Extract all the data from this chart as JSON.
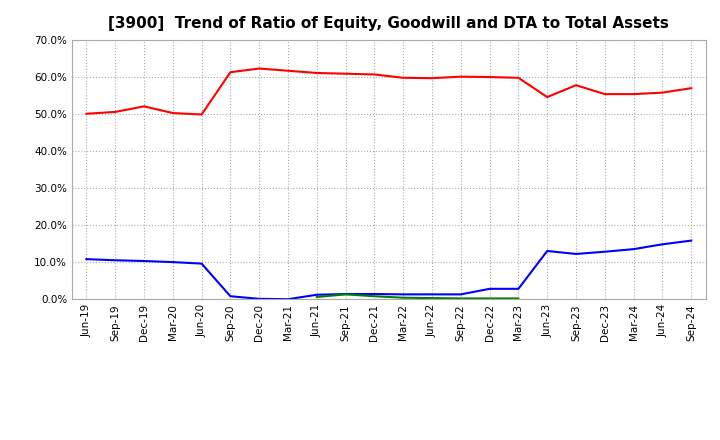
{
  "title": "[3900]  Trend of Ratio of Equity, Goodwill and DTA to Total Assets",
  "x_labels": [
    "Jun-19",
    "Sep-19",
    "Dec-19",
    "Mar-20",
    "Jun-20",
    "Sep-20",
    "Dec-20",
    "Mar-21",
    "Jun-21",
    "Sep-21",
    "Dec-21",
    "Mar-22",
    "Jun-22",
    "Sep-22",
    "Dec-22",
    "Mar-23",
    "Jun-23",
    "Sep-23",
    "Dec-23",
    "Mar-24",
    "Jun-24",
    "Sep-24"
  ],
  "equity": [
    0.5,
    0.505,
    0.52,
    0.502,
    0.498,
    0.612,
    0.622,
    0.616,
    0.61,
    0.608,
    0.606,
    0.597,
    0.596,
    0.6,
    0.599,
    0.597,
    0.545,
    0.577,
    0.553,
    0.553,
    0.557,
    0.569
  ],
  "goodwill": [
    0.108,
    0.105,
    0.103,
    0.1,
    0.096,
    0.008,
    0.001,
    0.0,
    0.012,
    0.014,
    0.014,
    0.013,
    0.013,
    0.013,
    0.028,
    0.028,
    0.13,
    0.122,
    0.128,
    0.135,
    0.148,
    0.158
  ],
  "dta": [
    null,
    null,
    null,
    null,
    null,
    null,
    null,
    null,
    0.006,
    0.013,
    0.008,
    0.004,
    0.003,
    0.002,
    0.002,
    0.002,
    null,
    null,
    null,
    null,
    null,
    null
  ],
  "equity_color": "#FF0000",
  "goodwill_color": "#0000FF",
  "dta_color": "#008000",
  "ylim": [
    0.0,
    0.7
  ],
  "yticks": [
    0.0,
    0.1,
    0.2,
    0.3,
    0.4,
    0.5,
    0.6,
    0.7
  ],
  "grid_color": "#AAAAAA",
  "background_color": "#FFFFFF",
  "plot_bg_color": "#FFFFFF",
  "title_fontsize": 11,
  "legend_fontsize": 9,
  "tick_fontsize": 7.5
}
